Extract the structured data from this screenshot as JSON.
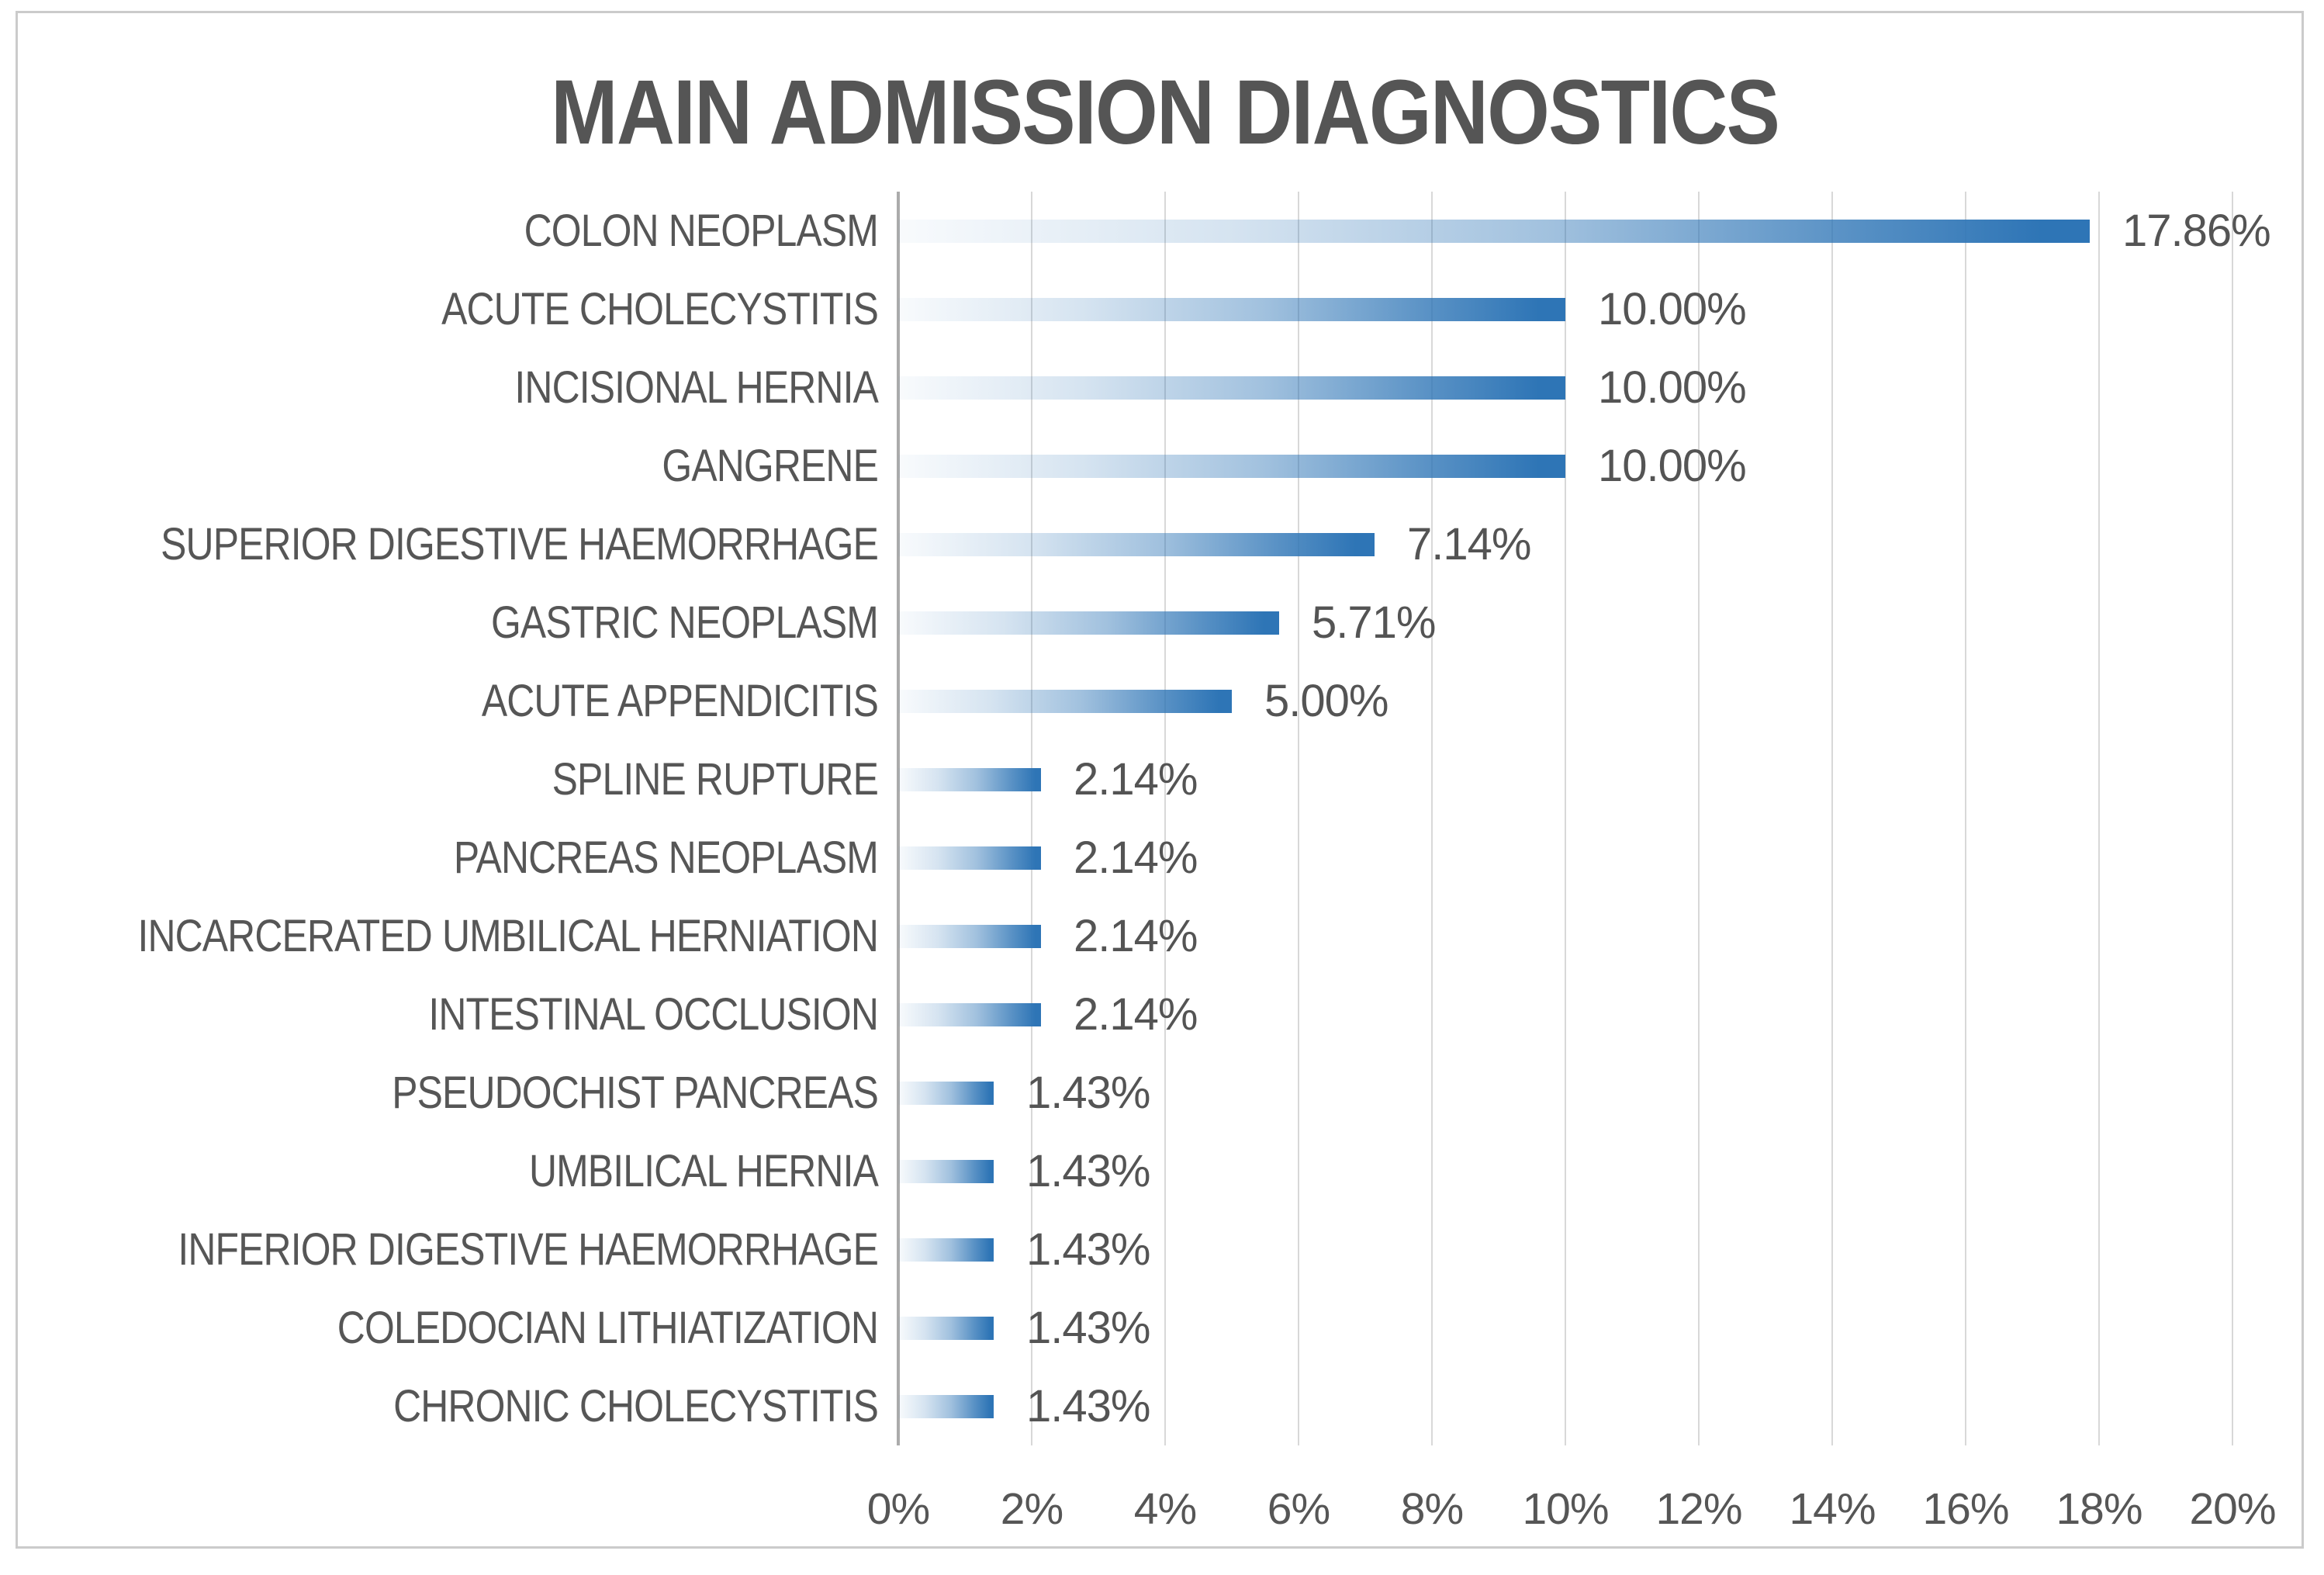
{
  "chart_data": {
    "type": "bar",
    "orientation": "horizontal",
    "title": "MAIN ADMISSION DIAGNOSTICS",
    "categories": [
      "COLON NEOPLASM",
      "ACUTE CHOLECYSTITIS",
      "INCISIONAL HERNIA",
      "GANGRENE",
      "SUPERIOR DIGESTIVE HAEMORRHAGE",
      "GASTRIC NEOPLASM",
      "ACUTE APPENDICITIS",
      "SPLINE RUPTURE",
      "PANCREAS NEOPLASM",
      "INCARCERATED UMBILICAL HERNIATION",
      "INTESTINAL OCCLUSION",
      "PSEUDOCHIST PANCREAS",
      "UMBILICAL HERNIA",
      "INFERIOR DIGESTIVE HAEMORRHAGE",
      "COLEDOCIAN LITHIATIZATION",
      "CHRONIC CHOLECYSTITIS"
    ],
    "values": [
      17.86,
      10.0,
      10.0,
      10.0,
      7.14,
      5.71,
      5.0,
      2.14,
      2.14,
      2.14,
      2.14,
      1.43,
      1.43,
      1.43,
      1.43,
      1.43
    ],
    "data_labels": [
      "17.86%",
      "10.00%",
      "10.00%",
      "10.00%",
      "7.14%",
      "5.71%",
      "5.00%",
      "2.14%",
      "2.14%",
      "2.14%",
      "2.14%",
      "1.43%",
      "1.43%",
      "1.43%",
      "1.43%",
      "1.43%"
    ],
    "xlabel": "",
    "ylabel": "",
    "xlim": [
      0,
      20
    ],
    "x_ticks": [
      "0%",
      "2%",
      "4%",
      "6%",
      "8%",
      "10%",
      "12%",
      "14%",
      "16%",
      "18%",
      "20%"
    ],
    "x_tick_values": [
      0,
      2,
      4,
      6,
      8,
      10,
      12,
      14,
      16,
      18,
      20
    ],
    "grid": "vertical-only",
    "legend": "none",
    "colors": {
      "bar_gradient_start": "#FFFFFF",
      "bar_gradient_end": "#2E75B6",
      "text": "#565656",
      "gridline": "#D8D8D8",
      "axis_line": "#ABABAB",
      "frame_border": "#CBCBCB",
      "background": "#FFFFFF"
    }
  }
}
